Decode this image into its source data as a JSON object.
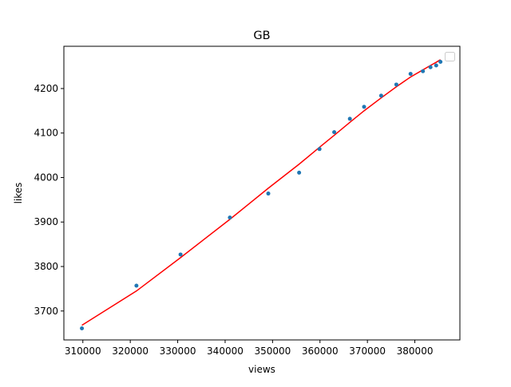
{
  "chart_data": {
    "type": "scatter",
    "title": "GB",
    "xlabel": "views",
    "ylabel": "likes",
    "xlim": [
      306000,
      389500
    ],
    "ylim": [
      3635,
      4295
    ],
    "xticks": [
      310000,
      320000,
      330000,
      340000,
      350000,
      360000,
      370000,
      380000
    ],
    "yticks": [
      3700,
      3800,
      3900,
      4000,
      4100,
      4200
    ],
    "grid": false,
    "legend": {
      "placement": "top-right",
      "entries": []
    },
    "colors": {
      "points": "#1f77b4",
      "fit_line": "#ff0000"
    },
    "points": {
      "x": [
        309800,
        321300,
        330600,
        341000,
        349100,
        355600,
        359900,
        363000,
        366300,
        369300,
        372900,
        376100,
        379100,
        381700,
        383300,
        384500,
        385400
      ],
      "y": [
        3661,
        3757,
        3827,
        3910,
        3964,
        4011,
        4064,
        4102,
        4132,
        4159,
        4184,
        4209,
        4233,
        4239,
        4248,
        4252,
        4260
      ]
    },
    "fit_line": {
      "x": [
        309800,
        321300,
        330600,
        341000,
        349100,
        355600,
        359900,
        363000,
        366300,
        369300,
        372900,
        376100,
        379100,
        381700,
        383300,
        384500,
        385400
      ],
      "y": [
        3668,
        3745,
        3820,
        3906,
        3976,
        4030,
        4068,
        4095,
        4124,
        4150,
        4179,
        4204,
        4226,
        4242,
        4252,
        4259,
        4265
      ]
    }
  }
}
